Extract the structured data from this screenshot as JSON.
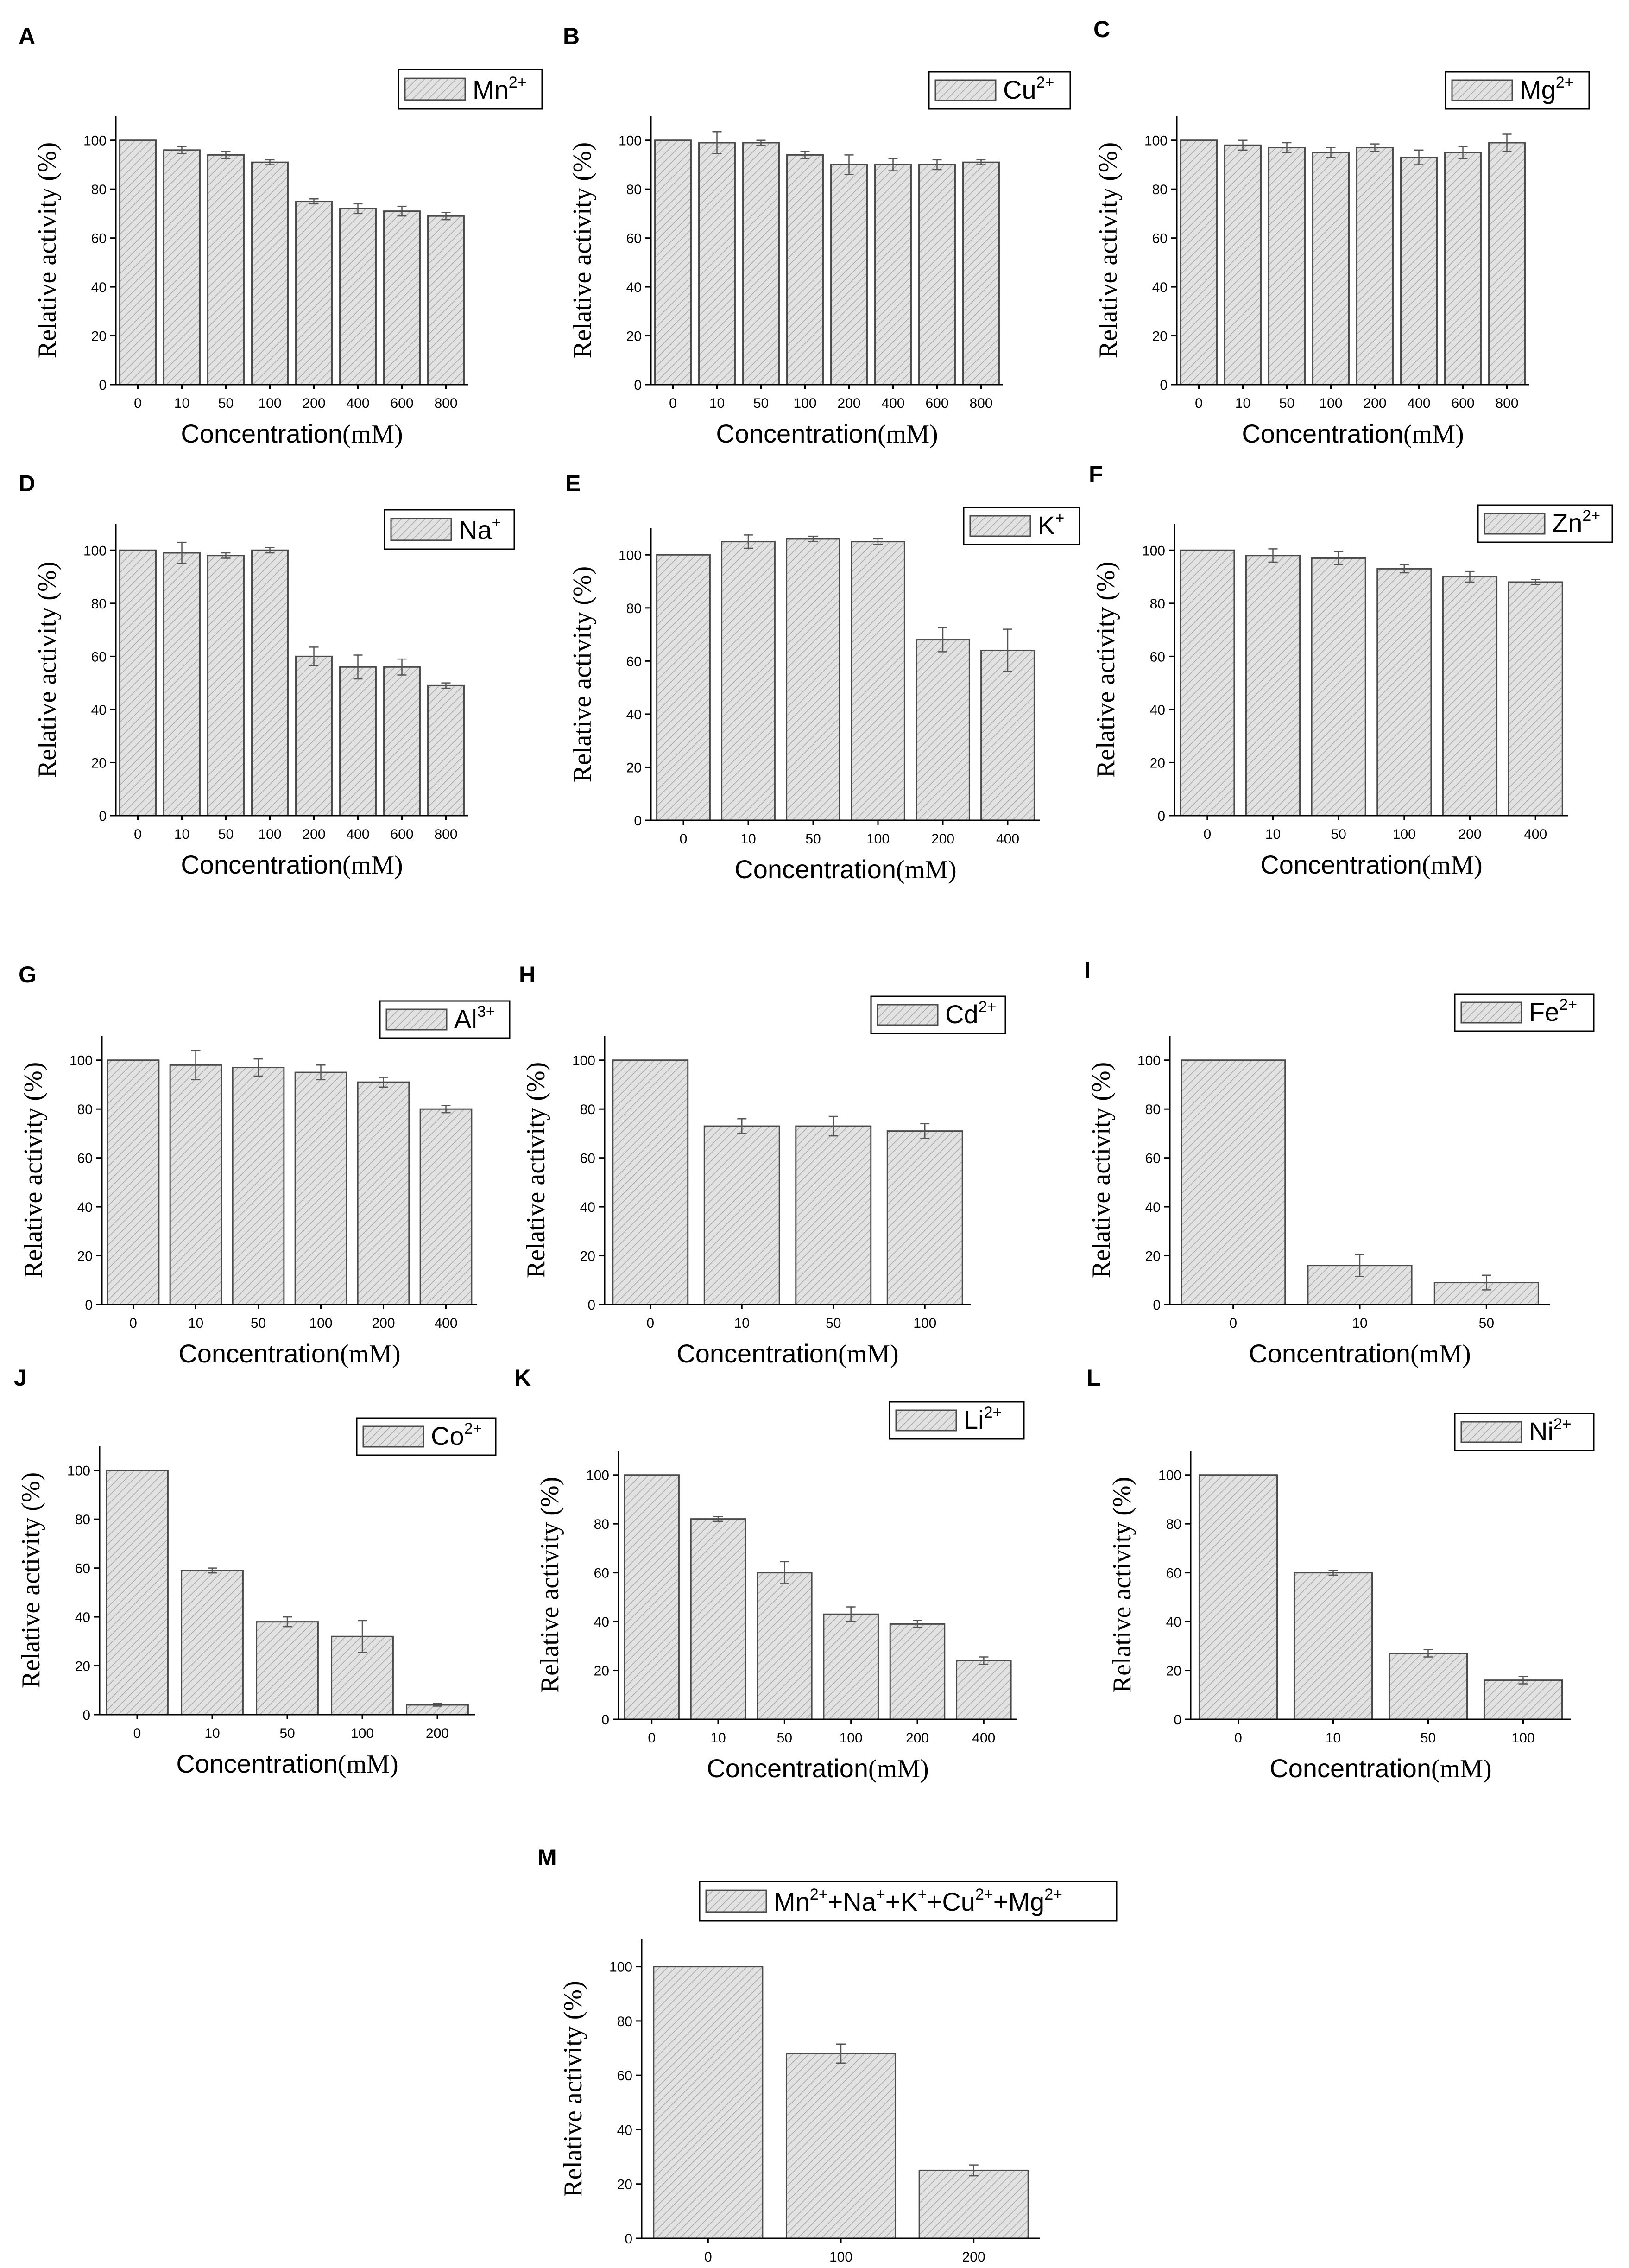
{
  "chart_data": [
    {
      "id": "A",
      "type": "bar",
      "letter": "A",
      "legend": {
        "base": "Mn",
        "sup": "2+"
      },
      "categories": [
        "0",
        "10",
        "50",
        "100",
        "200",
        "400",
        "600",
        "800"
      ],
      "values": [
        100,
        96,
        94,
        91,
        75,
        72,
        71,
        69
      ],
      "errors": [
        0,
        1.5,
        1.5,
        1,
        1,
        2,
        2,
        1.5
      ],
      "ylim": [
        0,
        110
      ],
      "yticks": [
        0,
        20,
        40,
        60,
        80,
        100
      ],
      "xlabel": "Concentration",
      "xunit": "(mM)",
      "ylabel": "Relative activity (%)"
    },
    {
      "id": "B",
      "type": "bar",
      "letter": "B",
      "legend": {
        "base": "Cu",
        "sup": "2+"
      },
      "categories": [
        "0",
        "10",
        "50",
        "100",
        "200",
        "400",
        "600",
        "800"
      ],
      "values": [
        100,
        99,
        99,
        94,
        90,
        90,
        90,
        91
      ],
      "errors": [
        0,
        4.5,
        1,
        1.5,
        4,
        2.5,
        2,
        1
      ],
      "ylim": [
        0,
        110
      ],
      "yticks": [
        0,
        20,
        40,
        60,
        80,
        100
      ],
      "xlabel": "Concentration",
      "xunit": "(mM)",
      "ylabel": "Relative activity (%)"
    },
    {
      "id": "C",
      "type": "bar",
      "letter": "C",
      "legend": {
        "base": "Mg",
        "sup": "2+"
      },
      "categories": [
        "0",
        "10",
        "50",
        "100",
        "200",
        "400",
        "600",
        "800"
      ],
      "values": [
        100,
        98,
        97,
        95,
        97,
        93,
        95,
        99
      ],
      "errors": [
        0,
        2,
        2,
        2,
        1.5,
        3,
        2.5,
        3.5
      ],
      "ylim": [
        0,
        110
      ],
      "yticks": [
        0,
        20,
        40,
        60,
        80,
        100
      ],
      "xlabel": "Concentration",
      "xunit": "(mM)",
      "ylabel": "Relative activity (%)"
    },
    {
      "id": "D",
      "type": "bar",
      "letter": "D",
      "legend": {
        "base": "Na",
        "sup": "+"
      },
      "categories": [
        "0",
        "10",
        "50",
        "100",
        "200",
        "400",
        "600",
        "800"
      ],
      "values": [
        100,
        99,
        98,
        100,
        60,
        56,
        56,
        49
      ],
      "errors": [
        0,
        4,
        1,
        1,
        3.5,
        4.5,
        3,
        1
      ],
      "ylim": [
        0,
        110
      ],
      "yticks": [
        0,
        20,
        40,
        60,
        80,
        100
      ],
      "xlabel": "Concentration",
      "xunit": "(mM)",
      "ylabel": "Relative activity (%)"
    },
    {
      "id": "E",
      "type": "bar",
      "letter": "E",
      "legend": {
        "base": "K",
        "sup": "+"
      },
      "categories": [
        "0",
        "10",
        "50",
        "100",
        "200",
        "400"
      ],
      "values": [
        100,
        105,
        106,
        105,
        68,
        64
      ],
      "errors": [
        0,
        2.5,
        1,
        1,
        4.5,
        8
      ],
      "ylim": [
        0,
        110
      ],
      "yticks": [
        0,
        20,
        40,
        60,
        80,
        100
      ],
      "xlabel": "Concentration",
      "xunit": "(mM)",
      "ylabel": "Relative activity (%)"
    },
    {
      "id": "F",
      "type": "bar",
      "letter": "F",
      "legend": {
        "base": "Zn",
        "sup": "2+"
      },
      "categories": [
        "0",
        "10",
        "50",
        "100",
        "200",
        "400"
      ],
      "values": [
        100,
        98,
        97,
        93,
        90,
        88
      ],
      "errors": [
        0,
        2.5,
        2.5,
        1.5,
        2,
        1
      ],
      "ylim": [
        0,
        110
      ],
      "yticks": [
        0,
        20,
        40,
        60,
        80,
        100
      ],
      "xlabel": "Concentration",
      "xunit": "(mM)",
      "ylabel": "Relative activity (%)"
    },
    {
      "id": "G",
      "type": "bar",
      "letter": "G",
      "legend": {
        "base": "Al",
        "sup": "3+"
      },
      "categories": [
        "0",
        "10",
        "50",
        "100",
        "200",
        "400"
      ],
      "values": [
        100,
        98,
        97,
        95,
        91,
        80
      ],
      "errors": [
        0,
        6,
        3.5,
        3,
        2,
        1.5
      ],
      "ylim": [
        0,
        110
      ],
      "yticks": [
        0,
        20,
        40,
        60,
        80,
        100
      ],
      "xlabel": "Concentration",
      "xunit": "(mM)",
      "ylabel": "Relative activity (%)"
    },
    {
      "id": "H",
      "type": "bar",
      "letter": "H",
      "legend": {
        "base": "Cd",
        "sup": "2+"
      },
      "categories": [
        "0",
        "10",
        "50",
        "100"
      ],
      "values": [
        100,
        73,
        73,
        71
      ],
      "errors": [
        0,
        3,
        4,
        3
      ],
      "ylim": [
        0,
        110
      ],
      "yticks": [
        0,
        20,
        40,
        60,
        80,
        100
      ],
      "xlabel": "Concentration",
      "xunit": "(mM)",
      "ylabel": "Relative activity (%)"
    },
    {
      "id": "I",
      "type": "bar",
      "letter": "I",
      "legend": {
        "base": "Fe",
        "sup": "2+"
      },
      "categories": [
        "0",
        "10",
        "50"
      ],
      "values": [
        100,
        16,
        9
      ],
      "errors": [
        0,
        4.5,
        3
      ],
      "ylim": [
        0,
        110
      ],
      "yticks": [
        0,
        20,
        40,
        60,
        80,
        100
      ],
      "xlabel": "Concentration",
      "xunit": "(mM)",
      "ylabel": "Relative activity (%)"
    },
    {
      "id": "J",
      "type": "bar",
      "letter": "J",
      "legend": {
        "base": "Co",
        "sup": "2+"
      },
      "categories": [
        "0",
        "10",
        "50",
        "100",
        "200"
      ],
      "values": [
        100,
        59,
        38,
        32,
        4
      ],
      "errors": [
        0,
        1,
        2,
        6.5,
        0.5
      ],
      "ylim": [
        0,
        110
      ],
      "yticks": [
        0,
        20,
        40,
        60,
        80,
        100
      ],
      "xlabel": "Concentration",
      "xunit": "(mM)",
      "ylabel": "Relative activity (%)"
    },
    {
      "id": "K",
      "type": "bar",
      "letter": "K",
      "legend": {
        "base": "Li",
        "sup": "2+"
      },
      "categories": [
        "0",
        "10",
        "50",
        "100",
        "200",
        "400"
      ],
      "values": [
        100,
        82,
        60,
        43,
        39,
        24
      ],
      "errors": [
        0,
        1,
        4.5,
        3,
        1.5,
        1.5
      ],
      "ylim": [
        0,
        110
      ],
      "yticks": [
        0,
        20,
        40,
        60,
        80,
        100
      ],
      "xlabel": "Concentration",
      "xunit": "(mM)",
      "ylabel": "Relative activity (%)"
    },
    {
      "id": "L",
      "type": "bar",
      "letter": "L",
      "legend": {
        "base": "Ni",
        "sup": "2+"
      },
      "categories": [
        "0",
        "10",
        "50",
        "100"
      ],
      "values": [
        100,
        60,
        27,
        16
      ],
      "errors": [
        0,
        1,
        1.5,
        1.5
      ],
      "ylim": [
        0,
        110
      ],
      "yticks": [
        0,
        20,
        40,
        60,
        80,
        100
      ],
      "xlabel": "Concentration",
      "xunit": "(mM)",
      "ylabel": "Relative activity (%)"
    },
    {
      "id": "M",
      "type": "bar",
      "letter": "M",
      "legend": {
        "parts": [
          {
            "base": "Mn",
            "sup": "2+"
          },
          {
            "base": "+Na",
            "sup": "+"
          },
          {
            "base": "+K",
            "sup": "+"
          },
          {
            "base": "+Cu",
            "sup": "2+"
          },
          {
            "base": "+Mg",
            "sup": "2+"
          }
        ]
      },
      "categories": [
        "0",
        "100",
        "200"
      ],
      "values": [
        100,
        68,
        25
      ],
      "errors": [
        0,
        3.5,
        2
      ],
      "ylim": [
        0,
        110
      ],
      "yticks": [
        0,
        20,
        40,
        60,
        80,
        100
      ],
      "xlabel": "Concentration",
      "xunit": "(mM)",
      "ylabel": "Relative activity (%)"
    }
  ]
}
